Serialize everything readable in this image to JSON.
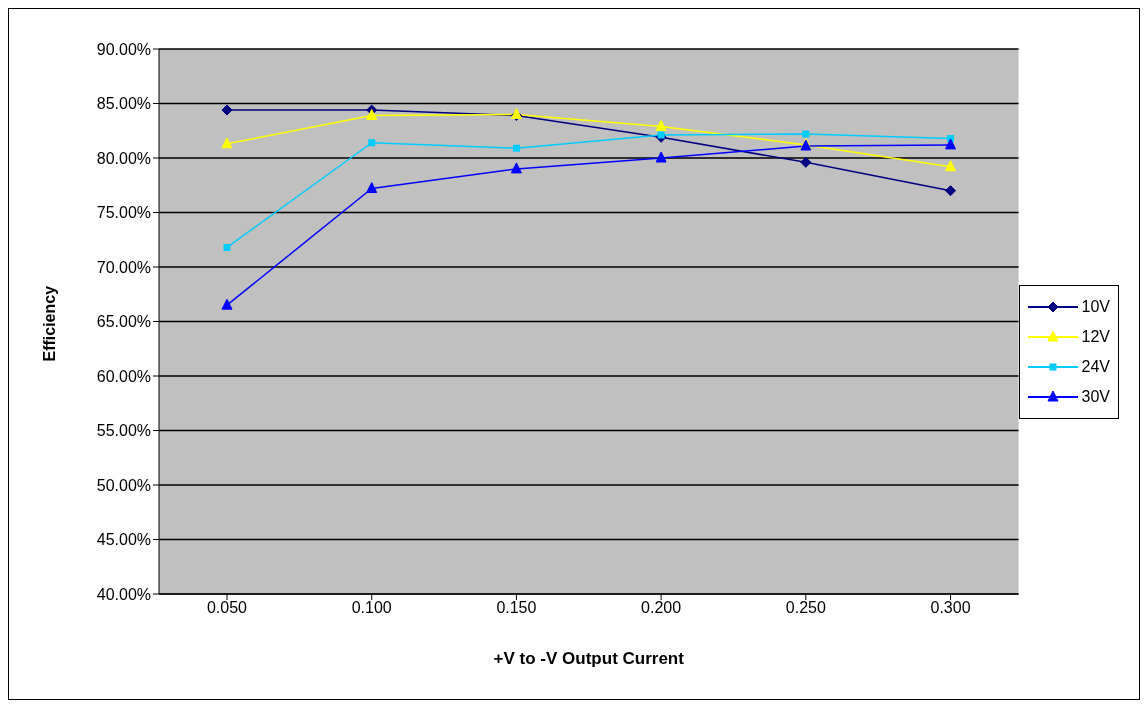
{
  "chart_data": {
    "type": "line",
    "xlabel": "+V to -V Output Current",
    "ylabel": "Efficiency",
    "categories": [
      "0.050",
      "0.100",
      "0.150",
      "0.200",
      "0.250",
      "0.300"
    ],
    "series": [
      {
        "name": "10V",
        "color": "#000080",
        "marker": "diamond",
        "values": [
          84.4,
          84.4,
          83.9,
          81.9,
          79.6,
          77.0
        ]
      },
      {
        "name": "12V",
        "color": "#ffff00",
        "marker": "triangle",
        "values": [
          81.3,
          83.9,
          84.0,
          82.9,
          81.2,
          79.2
        ]
      },
      {
        "name": "24V",
        "color": "#00ccff",
        "marker": "square",
        "values": [
          71.8,
          81.4,
          80.9,
          82.1,
          82.2,
          81.8
        ]
      },
      {
        "name": "30V",
        "color": "#0000ff",
        "marker": "triangle",
        "values": [
          66.5,
          77.2,
          79.0,
          80.0,
          81.1,
          81.2
        ]
      }
    ],
    "ylim": [
      40,
      90
    ],
    "yticks": [
      {
        "value": 40,
        "label": "40.00%"
      },
      {
        "value": 45,
        "label": "45.00%"
      },
      {
        "value": 50,
        "label": "50.00%"
      },
      {
        "value": 55,
        "label": "55.00%"
      },
      {
        "value": 60,
        "label": "60.00%"
      },
      {
        "value": 65,
        "label": "65.00%"
      },
      {
        "value": 70,
        "label": "70.00%"
      },
      {
        "value": 75,
        "label": "75.00%"
      },
      {
        "value": 80,
        "label": "80.00%"
      },
      {
        "value": 85,
        "label": "85.00%"
      },
      {
        "value": 90,
        "label": "90.00%"
      }
    ],
    "grid": "y",
    "legend": "right"
  }
}
